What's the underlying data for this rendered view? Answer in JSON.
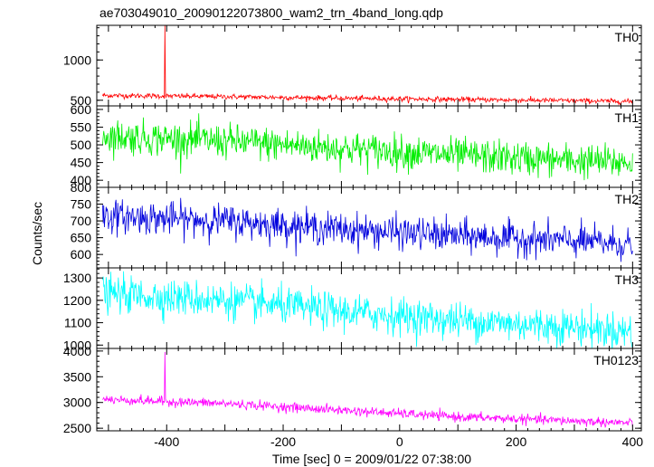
{
  "chart_data": {
    "type": "line",
    "title": "ae703049010_20090122073800_wam2_trn_4band_long.qdp",
    "xlabel": "Time [sec] 0 = 2009/01/22 07:38:00",
    "ylabel": "Counts/sec",
    "xlim": [
      -520,
      415
    ],
    "x_ticks": [
      -400,
      -200,
      0,
      200,
      400
    ],
    "grid": false,
    "panels": [
      {
        "name": "TH0",
        "color": "#ff0000",
        "ylim": [
          430,
          1430
        ],
        "y_ticks": [
          500,
          1000
        ],
        "trend": {
          "x": [
            -510,
            -300,
            -100,
            100,
            300,
            400
          ],
          "y": [
            560,
            545,
            525,
            510,
            495,
            485
          ]
        },
        "noise": 16,
        "spike": {
          "x": -403,
          "y": 1430
        }
      },
      {
        "name": "TH1",
        "color": "#00ee00",
        "ylim": [
          380,
          610
        ],
        "y_ticks": [
          400,
          450,
          500,
          550,
          600
        ],
        "trend": {
          "x": [
            -510,
            -300,
            -100,
            100,
            300,
            400
          ],
          "y": [
            525,
            510,
            490,
            470,
            455,
            450
          ]
        },
        "noise": 24
      },
      {
        "name": "TH2",
        "color": "#0000dd",
        "ylim": [
          560,
          800
        ],
        "y_ticks": [
          600,
          650,
          700,
          750,
          800
        ],
        "trend": {
          "x": [
            -510,
            -300,
            -100,
            100,
            300,
            400
          ],
          "y": [
            715,
            700,
            675,
            655,
            640,
            630
          ]
        },
        "noise": 24
      },
      {
        "name": "TH3",
        "color": "#00ffff",
        "ylim": [
          985,
          1345
        ],
        "y_ticks": [
          1000,
          1100,
          1200,
          1300
        ],
        "trend": {
          "x": [
            -510,
            -300,
            -100,
            100,
            300,
            400
          ],
          "y": [
            1230,
            1200,
            1150,
            1110,
            1080,
            1060
          ]
        },
        "noise": 40
      },
      {
        "name": "TH0123",
        "color": "#ff00ff",
        "ylim": [
          2450,
          4050
        ],
        "y_ticks": [
          2500,
          3000,
          3500,
          4000
        ],
        "trend": {
          "x": [
            -510,
            -300,
            -100,
            100,
            300,
            400
          ],
          "y": [
            3060,
            2980,
            2850,
            2720,
            2640,
            2600
          ]
        },
        "noise": 45,
        "spike": {
          "x": -403,
          "y": 3980
        }
      }
    ]
  }
}
